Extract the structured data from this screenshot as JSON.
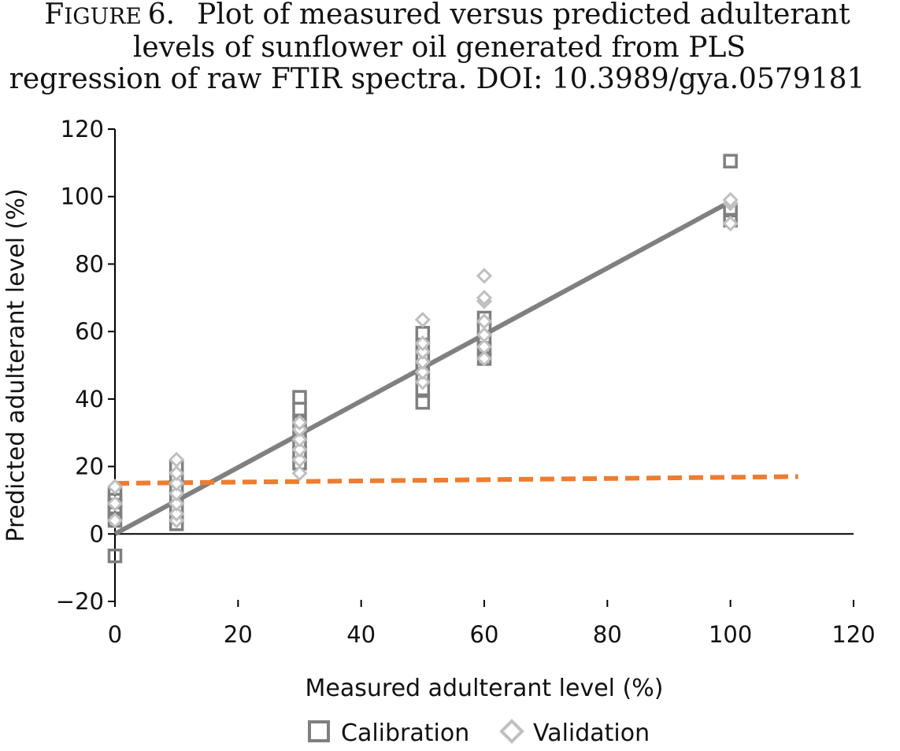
{
  "caption": {
    "figure_prefix_big": "F",
    "figure_prefix_small": "IGURE",
    "figure_number": "6.",
    "line1": "Plot of measured versus predicted adulterant",
    "line2": "levels of sunflower oil generated from PLS",
    "line3": "regression of raw FTIR spectra.  DOI: 10.3989/gya.0579181"
  },
  "colors": {
    "calibration": "#7f7f7f",
    "validation": "#bfbfbf",
    "regression_line": "#808080",
    "dashed_line": "#ed7d31",
    "axis": "#000000"
  },
  "chart_data": {
    "type": "scatter",
    "xlabel": "Measured adulterant level (%)",
    "ylabel": "Predicted adulterant level (%)",
    "xlim": [
      0,
      120
    ],
    "ylim": [
      -20,
      120
    ],
    "x_ticks": [
      0,
      20,
      40,
      60,
      80,
      100,
      120
    ],
    "y_ticks": [
      -20,
      0,
      20,
      40,
      60,
      80,
      100,
      120
    ],
    "x_tick_labels": [
      "0",
      "20",
      "40",
      "60",
      "80",
      "100",
      "120"
    ],
    "y_tick_labels": [
      "−20",
      "0",
      "20",
      "40",
      "60",
      "80",
      "100",
      "120"
    ],
    "grid": false,
    "legend_position": "bottom",
    "series": [
      {
        "name": "Calibration",
        "marker": "square",
        "points": [
          [
            0,
            -6.5
          ],
          [
            0,
            4
          ],
          [
            0,
            6
          ],
          [
            0,
            8
          ],
          [
            0,
            10
          ],
          [
            0,
            12
          ],
          [
            10,
            3
          ],
          [
            10,
            5
          ],
          [
            10,
            8
          ],
          [
            10,
            11
          ],
          [
            10,
            14
          ],
          [
            10,
            17
          ],
          [
            10,
            20
          ],
          [
            30,
            21
          ],
          [
            30,
            24
          ],
          [
            30,
            27
          ],
          [
            30,
            30
          ],
          [
            30,
            33
          ],
          [
            30,
            37
          ],
          [
            30,
            40.5
          ],
          [
            50,
            39
          ],
          [
            50,
            43
          ],
          [
            50,
            46
          ],
          [
            50,
            49
          ],
          [
            50,
            52
          ],
          [
            50,
            56
          ],
          [
            50,
            59.5
          ],
          [
            60,
            52
          ],
          [
            60,
            55
          ],
          [
            60,
            58
          ],
          [
            60,
            61
          ],
          [
            60,
            64
          ],
          [
            100,
            93
          ],
          [
            100,
            96
          ],
          [
            100,
            110.5
          ]
        ]
      },
      {
        "name": "Validation",
        "marker": "diamond",
        "points": [
          [
            0,
            4
          ],
          [
            0,
            9
          ],
          [
            0,
            14
          ],
          [
            10,
            4
          ],
          [
            10,
            6
          ],
          [
            10,
            9
          ],
          [
            10,
            12
          ],
          [
            10,
            15
          ],
          [
            10,
            18
          ],
          [
            10,
            22
          ],
          [
            30,
            18
          ],
          [
            30,
            22
          ],
          [
            30,
            25
          ],
          [
            30,
            28
          ],
          [
            30,
            31
          ],
          [
            30,
            33
          ],
          [
            50,
            45
          ],
          [
            50,
            48
          ],
          [
            50,
            51
          ],
          [
            50,
            54
          ],
          [
            50,
            56.5
          ],
          [
            50,
            63.5
          ],
          [
            60,
            52
          ],
          [
            60,
            55.5
          ],
          [
            60,
            59
          ],
          [
            60,
            63
          ],
          [
            60,
            69
          ],
          [
            60,
            70
          ],
          [
            60,
            76.5
          ],
          [
            100,
            92
          ],
          [
            100,
            98
          ],
          [
            100,
            99
          ]
        ]
      }
    ],
    "lines": [
      {
        "style": "solid",
        "x": [
          0,
          100
        ],
        "y": [
          0,
          98.5
        ]
      },
      {
        "style": "dashed",
        "x": [
          0,
          111
        ],
        "y": [
          15,
          17
        ]
      }
    ],
    "legend": [
      "Calibration",
      "Validation"
    ]
  }
}
